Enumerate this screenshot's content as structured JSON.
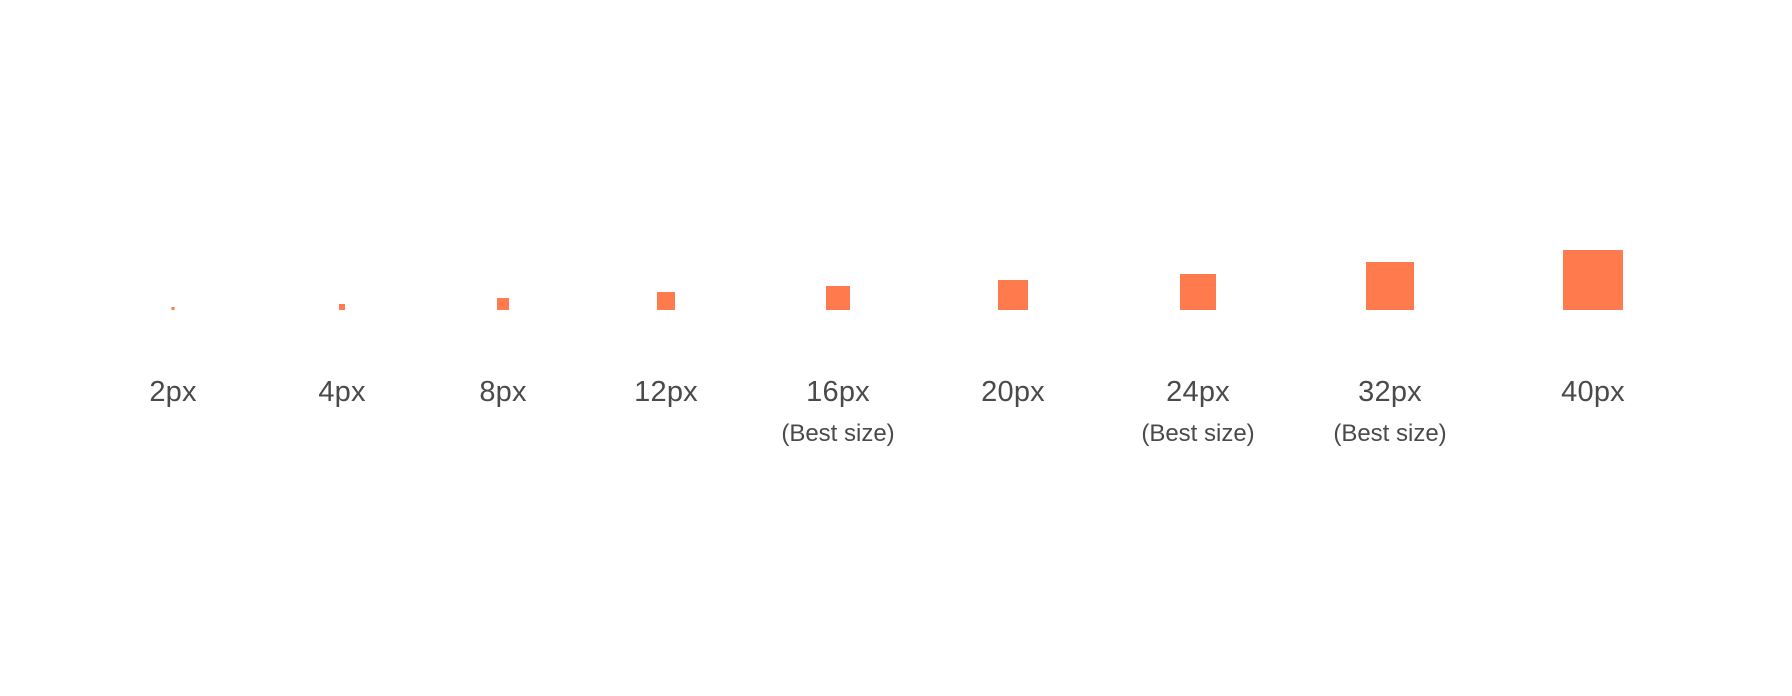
{
  "accent_color": "#ff7b4e",
  "text_color": "#4a4a4a",
  "sizes": [
    {
      "label": "2px",
      "value": 2,
      "note": ""
    },
    {
      "label": "4px",
      "value": 4,
      "note": ""
    },
    {
      "label": "8px",
      "value": 8,
      "note": ""
    },
    {
      "label": "12px",
      "value": 12,
      "note": ""
    },
    {
      "label": "16px",
      "value": 16,
      "note": "(Best size)"
    },
    {
      "label": "20px",
      "value": 20,
      "note": ""
    },
    {
      "label": "24px",
      "value": 24,
      "note": "(Best size)"
    },
    {
      "label": "32px",
      "value": 32,
      "note": "(Best size)"
    },
    {
      "label": "40px",
      "value": 40,
      "note": ""
    }
  ]
}
